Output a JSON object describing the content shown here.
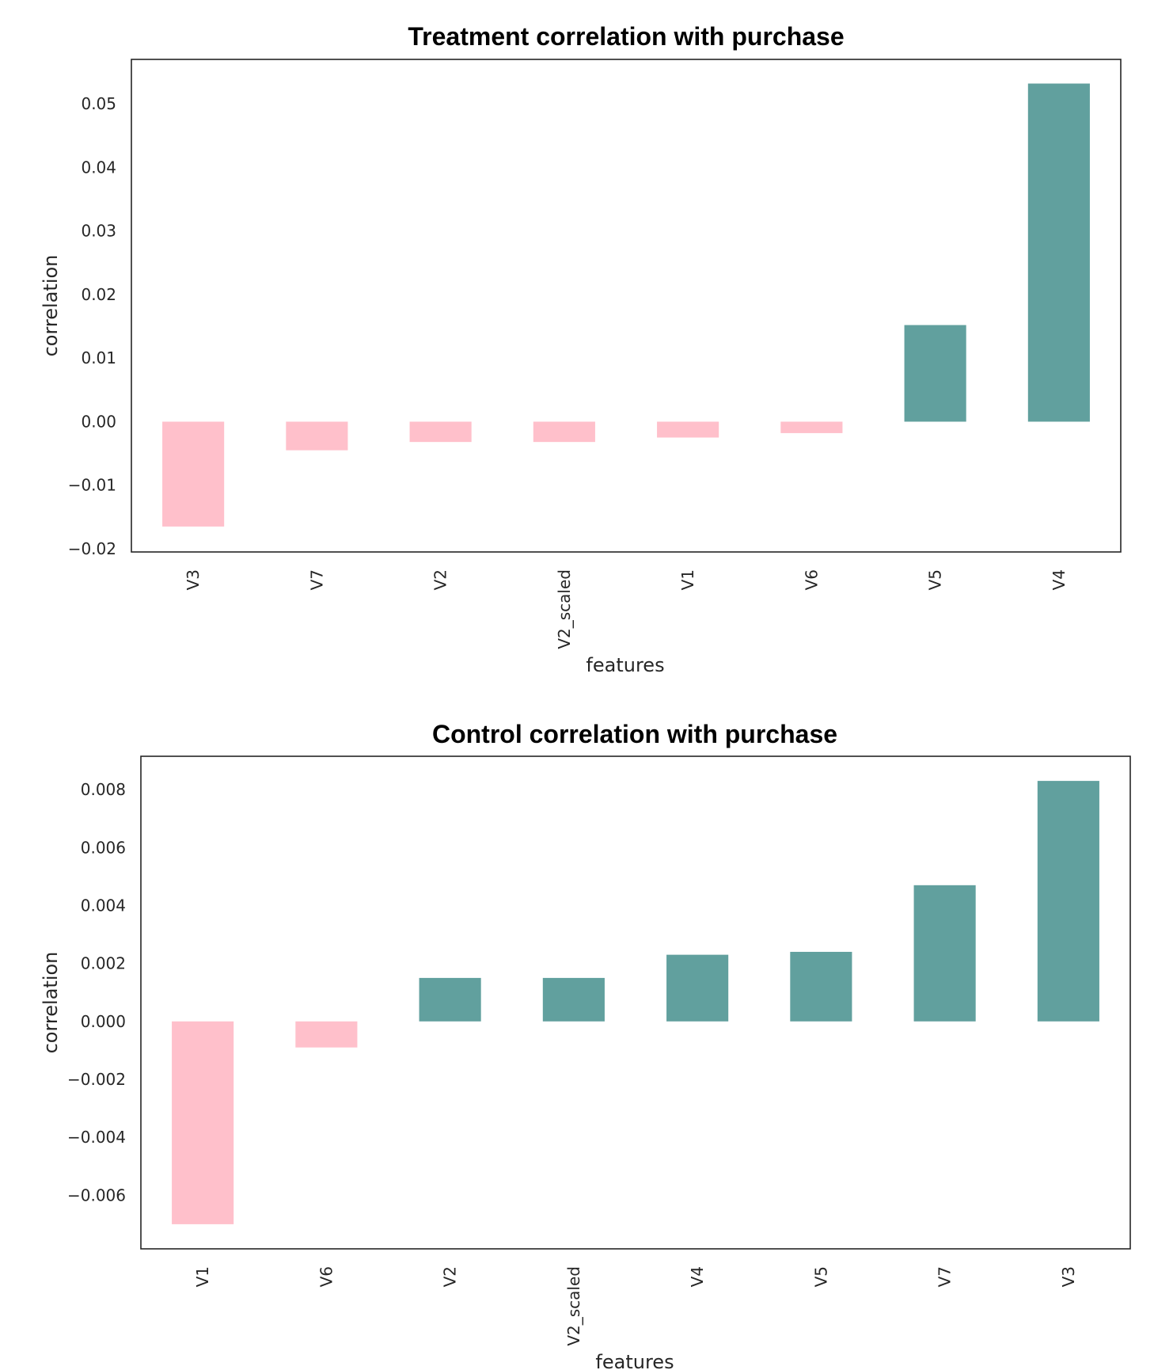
{
  "chart_data": [
    {
      "type": "bar",
      "title": "Treatment correlation with purchase",
      "xlabel": "features",
      "ylabel": "correlation",
      "categories": [
        "V3",
        "V7",
        "V2",
        "V2_scaled",
        "V1",
        "V6",
        "V5",
        "V4"
      ],
      "values": [
        -0.0165,
        -0.0045,
        -0.0032,
        -0.0032,
        -0.0025,
        -0.0018,
        0.0152,
        0.0532
      ],
      "ylim": [
        -0.0205,
        0.057
      ],
      "yticks": [
        -0.02,
        -0.01,
        0.0,
        0.01,
        0.02,
        0.03,
        0.04,
        0.05
      ],
      "ytick_labels": [
        "−0.02",
        "−0.01",
        "0.00",
        "0.01",
        "0.02",
        "0.03",
        "0.04",
        "0.05"
      ],
      "grid": false,
      "legend": "none"
    },
    {
      "type": "bar",
      "title": "Control correlation with purchase",
      "xlabel": "features",
      "ylabel": "correlation",
      "categories": [
        "V1",
        "V6",
        "V2",
        "V2_scaled",
        "V4",
        "V5",
        "V7",
        "V3"
      ],
      "values": [
        -0.007,
        -0.0009,
        0.0015,
        0.0015,
        0.0023,
        0.0024,
        0.0047,
        0.0083
      ],
      "ylim": [
        -0.00785,
        0.00915
      ],
      "yticks": [
        -0.006,
        -0.004,
        -0.002,
        0.0,
        0.002,
        0.004,
        0.006,
        0.008
      ],
      "ytick_labels": [
        "−0.006",
        "−0.004",
        "−0.002",
        "0.000",
        "0.002",
        "0.004",
        "0.006",
        "0.008"
      ],
      "grid": false,
      "legend": "none"
    }
  ],
  "colors": {
    "positive": "#61a09e",
    "negative": "#ffc0cb",
    "frame": "#262626"
  }
}
